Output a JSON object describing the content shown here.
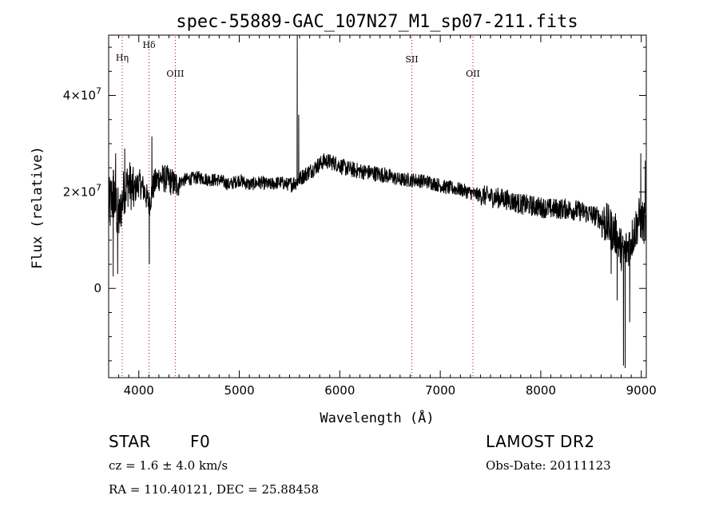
{
  "chart_data": {
    "type": "line",
    "title": "spec-55889-GAC_107N27_M1_sp07-211.fits",
    "xlabel": "Wavelength (Å)",
    "ylabel": "Flux (relative)",
    "xlim": [
      3700,
      9050
    ],
    "ylim": [
      -18500000,
      52500000
    ],
    "x_ticks": [
      4000,
      5000,
      6000,
      7000,
      8000,
      9000
    ],
    "x_tick_labels": [
      "4000",
      "5000",
      "6000",
      "7000",
      "8000",
      "9000"
    ],
    "y_ticks": [
      {
        "value": 0,
        "base": "0",
        "exp": ""
      },
      {
        "value": 20000000,
        "base": "2×10",
        "exp": "7"
      },
      {
        "value": 40000000,
        "base": "4×10",
        "exp": "7"
      }
    ],
    "grid": false,
    "lines": [
      {
        "label": "Hη",
        "x": 3835
      },
      {
        "label": "Hδ",
        "x": 4102
      },
      {
        "label": "OIII",
        "x": 4363
      },
      {
        "label": "SII",
        "x": 6717
      },
      {
        "label": "OII",
        "x": 7325
      }
    ],
    "spectrum_anchors": [
      [
        3700,
        16000000
      ],
      [
        3750,
        20000000
      ],
      [
        3800,
        14000000
      ],
      [
        3850,
        20000000
      ],
      [
        3900,
        22000000
      ],
      [
        3950,
        20000000
      ],
      [
        4000,
        22000000
      ],
      [
        4050,
        20500000
      ],
      [
        4102,
        17500000
      ],
      [
        4150,
        21500000
      ],
      [
        4200,
        23000000
      ],
      [
        4300,
        22500000
      ],
      [
        4363,
        21500000
      ],
      [
        4450,
        22500000
      ],
      [
        4600,
        23000000
      ],
      [
        4700,
        22500000
      ],
      [
        4800,
        22500000
      ],
      [
        4900,
        21500000
      ],
      [
        5000,
        22500000
      ],
      [
        5100,
        21500000
      ],
      [
        5200,
        22000000
      ],
      [
        5300,
        21500000
      ],
      [
        5400,
        22000000
      ],
      [
        5500,
        21500000
      ],
      [
        5560,
        22000000
      ],
      [
        5650,
        23500000
      ],
      [
        5750,
        25000000
      ],
      [
        5850,
        26500000
      ],
      [
        5950,
        26000000
      ],
      [
        6050,
        25000000
      ],
      [
        6150,
        24500000
      ],
      [
        6300,
        24000000
      ],
      [
        6450,
        23500000
      ],
      [
        6600,
        22500000
      ],
      [
        6750,
        22500000
      ],
      [
        6900,
        22000000
      ],
      [
        7050,
        21000000
      ],
      [
        7200,
        20500000
      ],
      [
        7350,
        19500000
      ],
      [
        7500,
        19000000
      ],
      [
        7650,
        18500000
      ],
      [
        7800,
        17500000
      ],
      [
        7950,
        17000000
      ],
      [
        8100,
        16500000
      ],
      [
        8250,
        16500000
      ],
      [
        8400,
        16000000
      ],
      [
        8550,
        15000000
      ],
      [
        8650,
        13500000
      ],
      [
        8750,
        11000000
      ],
      [
        8820,
        7000000
      ],
      [
        8900,
        10000000
      ],
      [
        8980,
        14500000
      ],
      [
        9050,
        13000000
      ]
    ],
    "spectrum_spikes": [
      {
        "x": 5577,
        "y": 52500000
      },
      {
        "x": 5591,
        "y": 36000000
      },
      {
        "x": 5890,
        "y": 27000000
      },
      {
        "x": 8823,
        "y": -16000000
      },
      {
        "x": 8840,
        "y": -16500000
      },
      {
        "x": 8885,
        "y": -7000000
      },
      {
        "x": 8760,
        "y": -2500000
      },
      {
        "x": 8700,
        "y": 3000000
      },
      {
        "x": 3790,
        "y": 3000000
      },
      {
        "x": 3745,
        "y": 2500000
      },
      {
        "x": 4105,
        "y": 5000000
      },
      {
        "x": 3770,
        "y": 28000000
      },
      {
        "x": 3860,
        "y": 29000000
      },
      {
        "x": 4130,
        "y": 31500000
      },
      {
        "x": 8995,
        "y": 28000000
      },
      {
        "x": 9040,
        "y": 26500000
      }
    ]
  },
  "info": {
    "object_class": "STAR",
    "subclass": "F0",
    "survey": "LAMOST DR2",
    "cz": "cz = 1.6 ± 4.0 km/s",
    "obs_date": "Obs-Date: 20111123",
    "radec": "RA = 110.40121, DEC =  25.88458"
  }
}
